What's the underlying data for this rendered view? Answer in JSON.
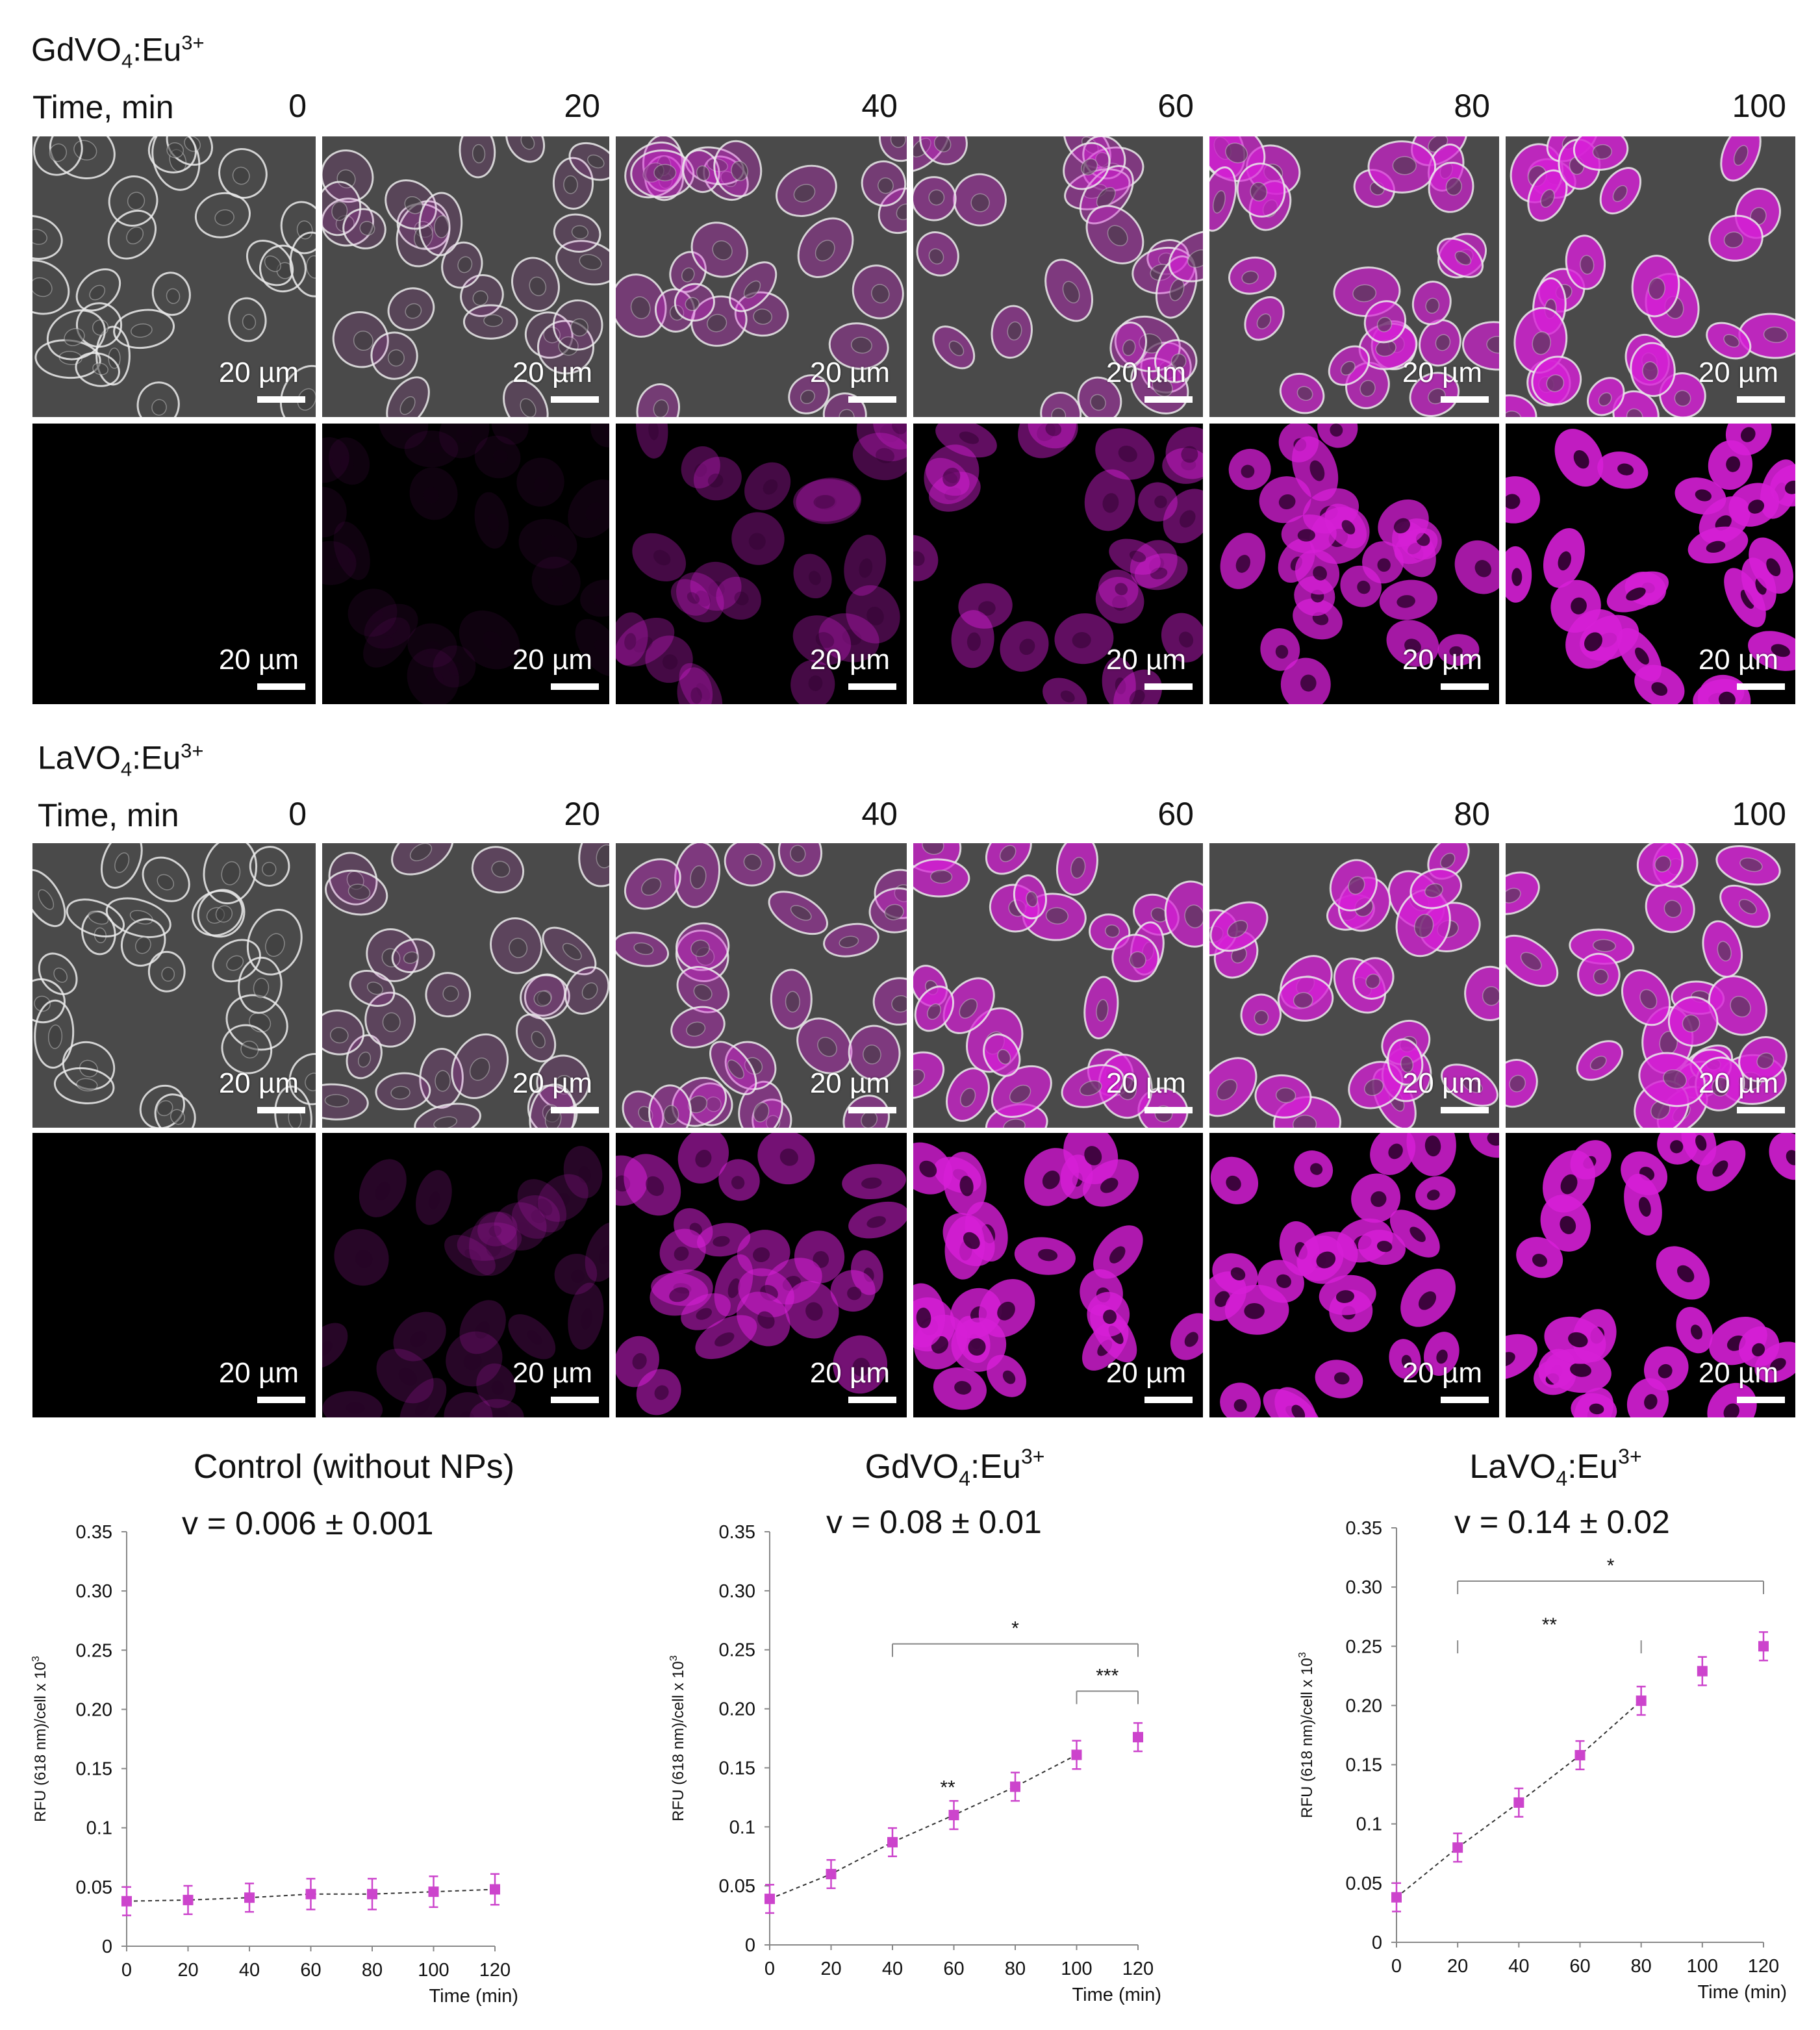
{
  "figure": {
    "sections": [
      {
        "id": "gd",
        "title_main": "GdVO",
        "title_sub": "4",
        "title_tail": ":Eu",
        "title_sup": "3+",
        "time_label": "Time, min",
        "times": [
          "0",
          "20",
          "40",
          "60",
          "80",
          "100"
        ],
        "overlay_intensity": [
          0.0,
          0.12,
          0.35,
          0.45,
          0.8,
          0.95
        ],
        "fluor_intensity": [
          0.0,
          0.08,
          0.35,
          0.5,
          0.85,
          1.0
        ],
        "scale_label": "20 µm"
      },
      {
        "id": "la",
        "title_main": "LaVO",
        "title_sub": "4",
        "title_tail": ":Eu",
        "title_sup": "3+",
        "time_label": "Time, min",
        "times": [
          "0",
          "20",
          "40",
          "60",
          "80",
          "100"
        ],
        "overlay_intensity": [
          0.0,
          0.15,
          0.45,
          0.85,
          0.9,
          0.95
        ],
        "fluor_intensity": [
          0.0,
          0.2,
          0.6,
          0.9,
          0.95,
          1.0
        ],
        "scale_label": "20 µm"
      }
    ],
    "colors": {
      "magenta": "#d61fd6",
      "marker": "#cc44cc",
      "axis": "#888888"
    }
  },
  "chart_data": [
    {
      "type": "scatter",
      "title": "Control (without NPs)",
      "title_main": "Control (without NPs)",
      "title_sub": "",
      "title_tail": "",
      "title_sup": "",
      "rate": "v = 0.006 ± 0.001",
      "ylabel": "RFU (618 nm)/cell x 10",
      "ylabel_sup": "3",
      "xlabel": "Time (min)",
      "xlim": [
        0,
        120
      ],
      "ylim": [
        0,
        0.35
      ],
      "xticks": [
        "0",
        "20",
        "40",
        "60",
        "80",
        "100",
        "120"
      ],
      "yticks": [
        "0",
        "0.05",
        "0.1",
        "0.15",
        "0.20",
        "0.25",
        "0.30",
        "0.35"
      ],
      "x": [
        0,
        20,
        40,
        60,
        80,
        100,
        120
      ],
      "y": [
        0.038,
        0.039,
        0.041,
        0.044,
        0.044,
        0.046,
        0.048
      ],
      "err": [
        0.012,
        0.012,
        0.012,
        0.013,
        0.013,
        0.013,
        0.013
      ],
      "fit_range": [
        0,
        120
      ],
      "brackets": []
    },
    {
      "type": "scatter",
      "title_main": "GdVO",
      "title_sub": "4",
      "title_tail": ":Eu",
      "title_sup": "3+",
      "rate": "v = 0.08 ± 0.01",
      "ylabel": "RFU (618 nm)/cell x 10",
      "ylabel_sup": "3",
      "xlabel": "Time (min)",
      "xlim": [
        0,
        120
      ],
      "ylim": [
        0,
        0.35
      ],
      "xticks": [
        "0",
        "20",
        "40",
        "60",
        "80",
        "100",
        "120"
      ],
      "yticks": [
        "0",
        "0.05",
        "0.1",
        "0.15",
        "0.20",
        "0.25",
        "0.30",
        "0.35"
      ],
      "x": [
        0,
        20,
        40,
        60,
        80,
        100,
        120
      ],
      "y": [
        0.039,
        0.06,
        0.087,
        0.11,
        0.134,
        0.161,
        0.176
      ],
      "err": [
        0.012,
        0.012,
        0.012,
        0.012,
        0.012,
        0.012,
        0.012
      ],
      "fit_range": [
        0,
        100
      ],
      "brackets": [
        {
          "from": 40,
          "to": 120,
          "y": 0.255,
          "label": "*"
        },
        {
          "from": 100,
          "to": 120,
          "y": 0.215,
          "label": "***"
        }
      ],
      "annotations": [
        {
          "x": 58,
          "y": 0.128,
          "label": "**"
        }
      ]
    },
    {
      "type": "scatter",
      "title_main": "LaVO",
      "title_sub": "4",
      "title_tail": ":Eu",
      "title_sup": "3+",
      "rate": "v = 0.14 ± 0.02",
      "ylabel": "RFU (618 nm)/cell x 10",
      "ylabel_sup": "3",
      "xlabel": "Time (min)",
      "xlim": [
        0,
        120
      ],
      "ylim": [
        0,
        0.35
      ],
      "xticks": [
        "0",
        "20",
        "40",
        "60",
        "80",
        "100",
        "120"
      ],
      "yticks": [
        "0",
        "0.05",
        "0.1",
        "0.15",
        "0.20",
        "0.25",
        "0.30",
        "0.35"
      ],
      "x": [
        0,
        20,
        40,
        60,
        80,
        100,
        120
      ],
      "y": [
        0.038,
        0.08,
        0.118,
        0.158,
        0.204,
        0.229,
        0.25
      ],
      "err": [
        0.012,
        0.012,
        0.012,
        0.012,
        0.012,
        0.012,
        0.012
      ],
      "fit_range": [
        0,
        80
      ],
      "brackets": [
        {
          "from": 20,
          "to": 120,
          "y": 0.305,
          "label": "*"
        },
        {
          "from": 20,
          "to": 80,
          "y": 0.255,
          "label": "**",
          "dashed": true
        }
      ],
      "annotations": []
    }
  ]
}
